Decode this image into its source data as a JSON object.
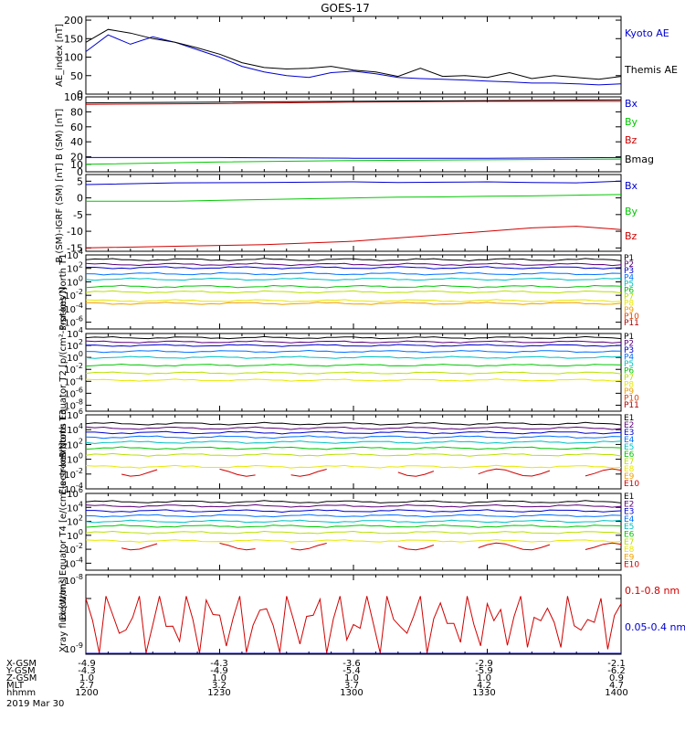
{
  "title": "GOES-17",
  "colors": {
    "black": "#000000",
    "blue": "#0000d0",
    "green": "#00c800",
    "red": "#d00000",
    "p": [
      "#000000",
      "#5a007a",
      "#0000d0",
      "#0070ff",
      "#00c0c0",
      "#00c800",
      "#b8e000",
      "#e8e800",
      "#f0a000",
      "#e04000",
      "#b00000"
    ],
    "e": [
      "#000000",
      "#5a007a",
      "#0000d0",
      "#0070ff",
      "#00c0c0",
      "#00c800",
      "#b8e000",
      "#e8e800",
      "#f0a000",
      "#d00000"
    ]
  },
  "orbit": {
    "row_labels": [
      "X-GSM",
      "Y-GSM",
      "Z-GSM",
      "MLT",
      "hhmm"
    ],
    "date": "2019 Mar 30",
    "columns": [
      [
        "-4.9",
        "-4.3",
        "1.0",
        "2.7",
        "1200"
      ],
      [
        "-4.3",
        "-4.9",
        "1.0",
        "3.2",
        "1230"
      ],
      [
        "-3.6",
        "-5.4",
        "1.0",
        "3.7",
        "1300"
      ],
      [
        "-2.9",
        "-5.9",
        "1.0",
        "4.2",
        "1330"
      ],
      [
        "-2.1",
        "-6.2",
        "0.9",
        "4.7",
        "1400"
      ]
    ]
  },
  "chart_data": [
    {
      "type": "line",
      "ylabel": "AE_index [nT]",
      "ylim": [
        0,
        210
      ],
      "yticks": [
        "0",
        "50",
        "100",
        "150",
        "200"
      ],
      "x_minutes": [
        0,
        5,
        10,
        15,
        20,
        25,
        30,
        35,
        40,
        45,
        50,
        55,
        60,
        65,
        70,
        75,
        80,
        85,
        90,
        95,
        100,
        105,
        110,
        115,
        120
      ],
      "series": [
        {
          "name": "Kyoto AE",
          "color": "blue",
          "values": [
            115,
            160,
            135,
            155,
            140,
            120,
            100,
            75,
            60,
            50,
            45,
            58,
            62,
            55,
            45,
            42,
            40,
            38,
            35,
            33,
            30,
            30,
            28,
            25,
            28
          ]
        },
        {
          "name": "Themis AE",
          "color": "black",
          "values": [
            140,
            175,
            165,
            150,
            140,
            125,
            108,
            85,
            72,
            68,
            70,
            75,
            65,
            60,
            48,
            70,
            48,
            50,
            45,
            58,
            42,
            50,
            45,
            40,
            48
          ]
        }
      ]
    },
    {
      "type": "line",
      "ylabel": "B (SM) [nT]",
      "ylim": [
        0,
        100
      ],
      "yticks": [
        "0",
        "10",
        "20",
        "40",
        "60",
        "80",
        "100"
      ],
      "x_minutes": [
        0,
        30,
        60,
        90,
        120
      ],
      "series": [
        {
          "name": "Bx",
          "color": "blue",
          "values": [
            19,
            19,
            18,
            18,
            19
          ]
        },
        {
          "name": "By",
          "color": "green",
          "values": [
            10,
            13,
            15,
            16,
            17
          ]
        },
        {
          "name": "Bz",
          "color": "red",
          "values": [
            90,
            91,
            93,
            94,
            94
          ]
        },
        {
          "name": "Bmag",
          "color": "black",
          "values": [
            92,
            93,
            94,
            95,
            96
          ]
        }
      ]
    },
    {
      "type": "line",
      "ylabel": "B (SM)-IGRF (SM) [nT]",
      "ylim": [
        -16,
        7
      ],
      "yticks": [
        "5",
        "0",
        "-5",
        "-10",
        "-15"
      ],
      "x_minutes": [
        0,
        20,
        40,
        60,
        70,
        80,
        90,
        100,
        110,
        120
      ],
      "series": [
        {
          "name": "Bx",
          "color": "blue",
          "values": [
            4,
            4.5,
            4.6,
            4.8,
            4.6,
            4.7,
            4.8,
            4.6,
            4.5,
            5
          ]
        },
        {
          "name": "By",
          "color": "green",
          "values": [
            -1,
            -1,
            -0.5,
            0,
            0.2,
            0.3,
            0.5,
            0.6,
            0.8,
            1
          ]
        },
        {
          "name": "Bz",
          "color": "red",
          "values": [
            -15,
            -14.5,
            -14,
            -13,
            -12,
            -11,
            -10,
            -9,
            -8.5,
            -9.5
          ]
        }
      ]
    },
    {
      "type": "line",
      "ylabel": "Protons North T1",
      "log": true,
      "ylim_exp": [
        -7,
        4
      ],
      "yticks": [
        [
          "4",
          "10"
        ],
        [
          "2",
          "10"
        ],
        [
          "0",
          "10"
        ],
        [
          "-2",
          "10"
        ],
        [
          "-4",
          "10"
        ],
        [
          "-6",
          "10"
        ]
      ],
      "legend": [
        "P1",
        "P2",
        "P3",
        "P4",
        "P5",
        "P6",
        "P7",
        "P8",
        "P9",
        "P10",
        "P11"
      ],
      "levels": [
        3.3,
        2.6,
        2.1,
        1.2,
        0.4,
        -0.7,
        -1.5,
        -2.8,
        -3.2
      ]
    },
    {
      "type": "line",
      "ylabel": "Protons Equator T2 [p/(cm²-s-sr-keV)]",
      "log": true,
      "ylim_exp": [
        -9,
        4
      ],
      "yticks": [
        [
          "4",
          "10"
        ],
        [
          "2",
          "10"
        ],
        [
          "0",
          "10"
        ],
        [
          "-2",
          "10"
        ],
        [
          "-4",
          "10"
        ],
        [
          "-6",
          "10"
        ],
        [
          "-8",
          "10"
        ]
      ],
      "legend": [
        "P1",
        "P2",
        "P3",
        "P4",
        "P5",
        "P6",
        "P7",
        "P8",
        "P9",
        "P10",
        "P11"
      ],
      "levels": [
        3.3,
        2.6,
        2.0,
        1.0,
        0.0,
        -1.3,
        -2.6,
        -3.8
      ]
    },
    {
      "type": "line",
      "ylabel": "Electrons North T3",
      "log": true,
      "ylim_exp": [
        -4,
        6
      ],
      "yticks": [
        [
          "6",
          "10"
        ],
        [
          "4",
          "10"
        ],
        [
          "2",
          "10"
        ],
        [
          "0",
          "10"
        ],
        [
          "-2",
          "10"
        ],
        [
          "-4",
          "10"
        ]
      ],
      "legend": [
        "E1",
        "E2",
        "E3",
        "E4",
        "E5",
        "E6",
        "E7",
        "E8",
        "E9",
        "E10"
      ],
      "levels": [
        4.8,
        4.2,
        3.6,
        3.0,
        2.3,
        1.5,
        0.6,
        -1.0
      ]
    },
    {
      "type": "line",
      "ylabel": "Electrons Equator T4 [e/(cm²-s-sr-keV)]",
      "log": true,
      "ylim_exp": [
        -5,
        6
      ],
      "yticks": [
        [
          "6",
          "10"
        ],
        [
          "4",
          "10"
        ],
        [
          "2",
          "10"
        ],
        [
          "0",
          "10"
        ],
        [
          "-2",
          "10"
        ],
        [
          "-4",
          "10"
        ]
      ],
      "legend": [
        "E1",
        "E2",
        "E3",
        "E4",
        "E5",
        "E6",
        "E7",
        "E8",
        "E9",
        "E10"
      ],
      "levels": [
        4.8,
        4.2,
        3.5,
        2.8,
        2.0,
        1.3,
        0.4,
        -0.8
      ]
    },
    {
      "type": "line",
      "ylabel": "Xray flux [W/m²]",
      "log": true,
      "yticks": [
        [
          "-8",
          "10"
        ],
        [
          "-9",
          "10"
        ]
      ],
      "series": [
        {
          "name": "0.1-0.8 nm",
          "color": "red"
        },
        {
          "name": "0.05-0.4 nm",
          "color": "blue"
        }
      ]
    }
  ]
}
